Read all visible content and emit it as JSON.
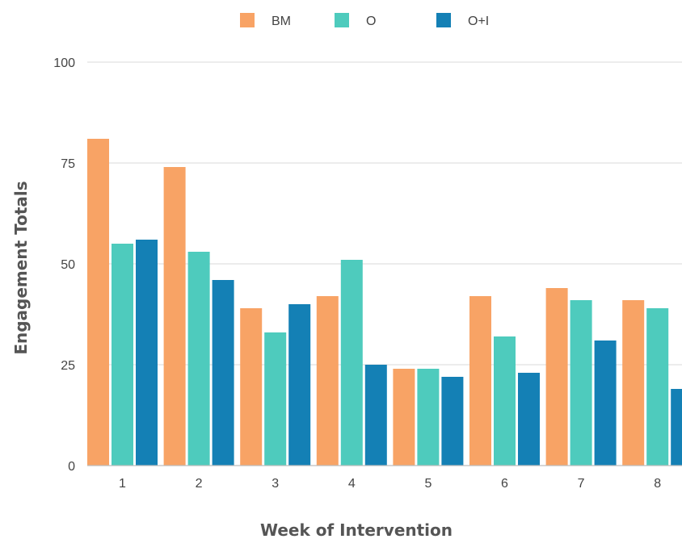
{
  "chart_data": {
    "type": "bar",
    "xlabel": "Week of Intervention",
    "ylabel": "Engagement Totals",
    "categories": [
      "1",
      "2",
      "3",
      "4",
      "5",
      "6",
      "7",
      "8"
    ],
    "series": [
      {
        "name": "BM",
        "color": "#f8a365",
        "values": [
          81,
          74,
          39,
          42,
          24,
          42,
          44,
          41
        ]
      },
      {
        "name": "O",
        "color": "#4ecbbd",
        "values": [
          55,
          53,
          33,
          51,
          24,
          32,
          41,
          39
        ]
      },
      {
        "name": "O+I",
        "color": "#1480b5",
        "values": [
          56,
          46,
          40,
          25,
          22,
          23,
          31,
          19
        ]
      }
    ],
    "yticks": [
      0,
      25,
      50,
      75,
      100
    ],
    "ylim": [
      0,
      100
    ],
    "grid": true,
    "legend_position": "top-center"
  }
}
